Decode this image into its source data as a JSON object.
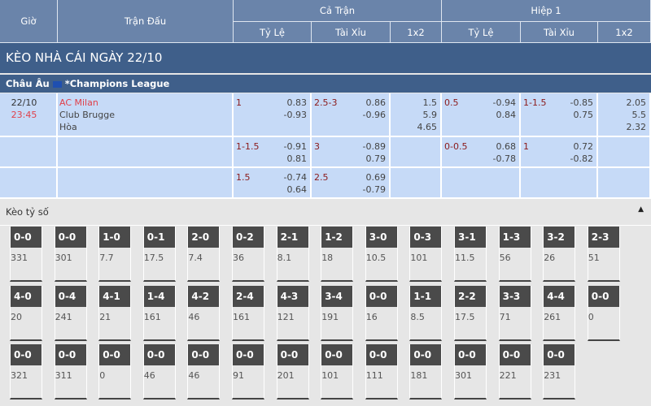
{
  "header": {
    "time": "Giờ",
    "match": "Trận Đấu",
    "full": "Cả Trận",
    "half": "Hiệp 1",
    "hdp": "Tỷ Lệ",
    "ou": "Tài Xỉu",
    "x12": "1x2"
  },
  "title": "KÈO NHÀ CÁI NGÀY 22/10",
  "league": {
    "region": "Châu Âu",
    "name": "*Champions League",
    "flag_color": "#1f4fb0"
  },
  "match": {
    "date": "22/10",
    "time": "23:45",
    "home": "AC Milan",
    "away": "Club Brugge",
    "draw": "Hòa"
  },
  "rows": [
    {
      "ft_hdp": {
        "line": "1",
        "v1": "0.83",
        "v2": "-0.93"
      },
      "ft_ou": {
        "line": "2.5-3",
        "v1": "0.86",
        "v2": "-0.96"
      },
      "ft_1x2": [
        "1.5",
        "5.9",
        "4.65"
      ],
      "h1_hdp": {
        "line": "0.5",
        "v1": "-0.94",
        "v2": "0.84"
      },
      "h1_ou": {
        "line": "1-1.5",
        "v1": "-0.85",
        "v2": "0.75"
      },
      "h1_1x2": [
        "2.05",
        "5.5",
        "2.32"
      ]
    },
    {
      "ft_hdp": {
        "line": "1-1.5",
        "v1": "-0.91",
        "v2": "0.81"
      },
      "ft_ou": {
        "line": "3",
        "v1": "-0.89",
        "v2": "0.79"
      },
      "h1_hdp": {
        "line": "0-0.5",
        "v1": "0.68",
        "v2": "-0.78"
      },
      "h1_ou": {
        "line": "1",
        "v1": "0.72",
        "v2": "-0.82"
      }
    },
    {
      "ft_hdp": {
        "line": "1.5",
        "v1": "-0.74",
        "v2": "0.64"
      },
      "ft_ou": {
        "line": "2.5",
        "v1": "0.69",
        "v2": "-0.79"
      }
    }
  ],
  "correct_score": {
    "title": "Kèo tỷ số",
    "cards": [
      [
        "0-0",
        "331"
      ],
      [
        "0-0",
        "301"
      ],
      [
        "1-0",
        "7.7"
      ],
      [
        "0-1",
        "17.5"
      ],
      [
        "2-0",
        "7.4"
      ],
      [
        "0-2",
        "36"
      ],
      [
        "2-1",
        "8.1"
      ],
      [
        "1-2",
        "18"
      ],
      [
        "3-0",
        "10.5"
      ],
      [
        "0-3",
        "101"
      ],
      [
        "3-1",
        "11.5"
      ],
      [
        "1-3",
        "56"
      ],
      [
        "3-2",
        "26"
      ],
      [
        "2-3",
        "51"
      ],
      [
        "4-0",
        "20"
      ],
      [
        "0-4",
        "241"
      ],
      [
        "4-1",
        "21"
      ],
      [
        "1-4",
        "161"
      ],
      [
        "4-2",
        "46"
      ],
      [
        "2-4",
        "161"
      ],
      [
        "4-3",
        "121"
      ],
      [
        "3-4",
        "191"
      ],
      [
        "0-0",
        "16"
      ],
      [
        "1-1",
        "8.5"
      ],
      [
        "2-2",
        "17.5"
      ],
      [
        "3-3",
        "71"
      ],
      [
        "4-4",
        "261"
      ],
      [
        "0-0",
        "0"
      ],
      [
        "0-0",
        "321"
      ],
      [
        "0-0",
        "311"
      ],
      [
        "0-0",
        "0"
      ],
      [
        "0-0",
        "46"
      ],
      [
        "0-0",
        "46"
      ],
      [
        "0-0",
        "91"
      ],
      [
        "0-0",
        "201"
      ],
      [
        "0-0",
        "101"
      ],
      [
        "0-0",
        "111"
      ],
      [
        "0-0",
        "181"
      ],
      [
        "0-0",
        "301"
      ],
      [
        "0-0",
        "221"
      ],
      [
        "0-0",
        "231"
      ]
    ]
  }
}
